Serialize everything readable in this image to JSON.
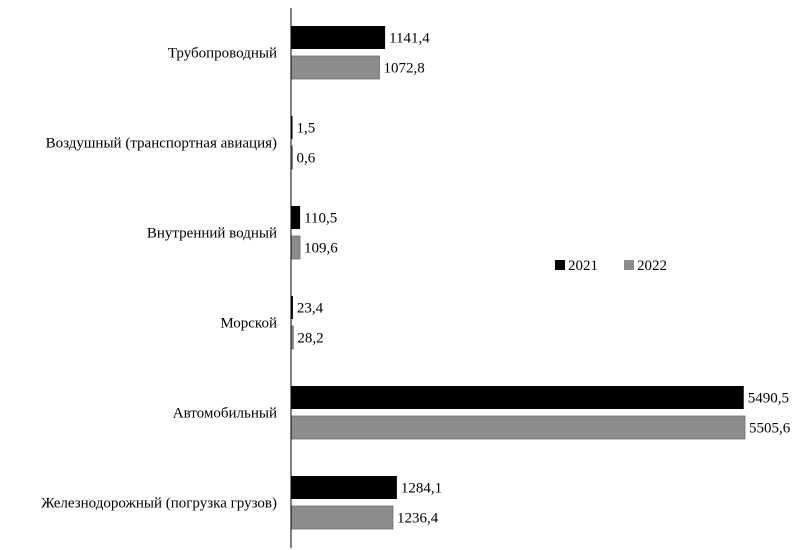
{
  "chart_data": {
    "type": "bar",
    "orientation": "horizontal",
    "categories": [
      "Трубопроводный",
      "Воздушный (транспортная авиация)",
      "Внутренний водный",
      "Морской",
      "Автомобильный",
      "Железнодорожный (погрузка грузов)"
    ],
    "series": [
      {
        "name": "2021",
        "color": "#000000",
        "values": [
          1141.4,
          1.5,
          110.5,
          23.4,
          5490.5,
          1284.1
        ],
        "labels": [
          "1141,4",
          "1,5",
          "110,5",
          "23,4",
          "5490,5",
          "1284,1"
        ]
      },
      {
        "name": "2022",
        "color": "#8c8c8c",
        "values": [
          1072.8,
          0.6,
          109.6,
          28.2,
          5505.6,
          1236.4
        ],
        "labels": [
          "1072,8",
          "0,6",
          "109,6",
          "28,2",
          "5505,6",
          "1236,4"
        ]
      }
    ],
    "xlim": [
      0,
      5505.6
    ],
    "grid": false,
    "legend_position": "right"
  }
}
